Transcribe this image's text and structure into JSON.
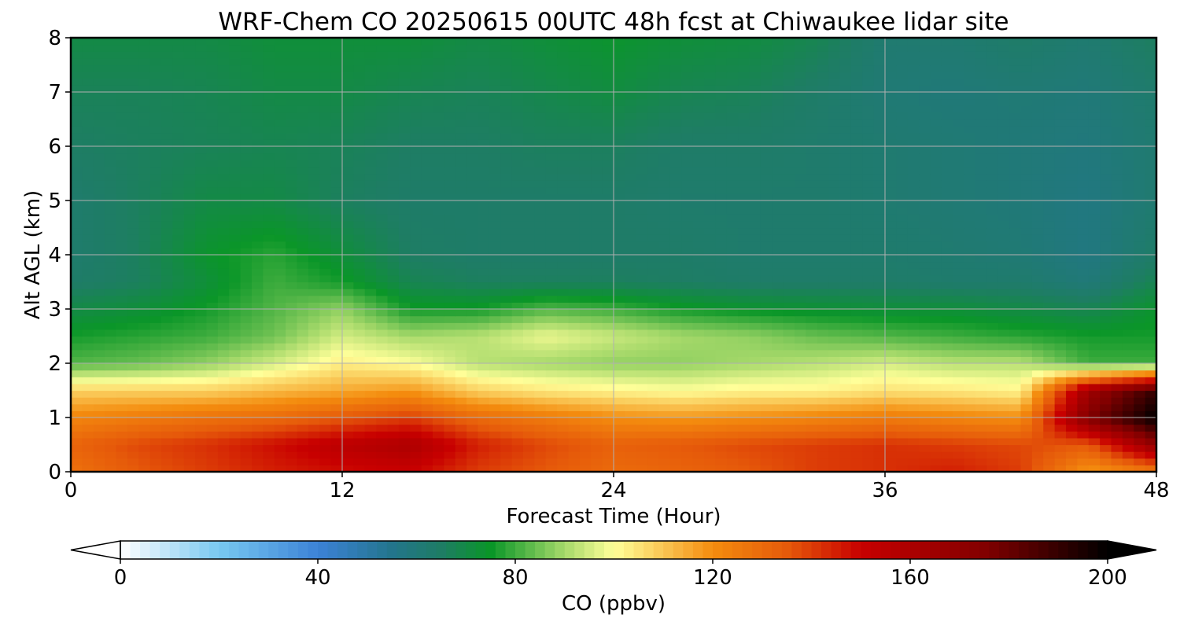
{
  "chart_data": {
    "type": "heatmap",
    "title": "WRF-Chem CO  20250615 00UTC 48h fcst at Chiwaukee lidar site",
    "xlabel": "Forecast Time (Hour)",
    "ylabel": "Alt AGL (km)",
    "xlim": [
      0,
      48
    ],
    "ylim": [
      0,
      8
    ],
    "xticks": [
      "0",
      "12",
      "24",
      "36",
      "48"
    ],
    "yticks": [
      "0",
      "1",
      "2",
      "3",
      "4",
      "5",
      "6",
      "7",
      "8"
    ],
    "grid": true,
    "x": [
      0,
      3,
      6,
      9,
      12,
      15,
      18,
      21,
      24,
      27,
      30,
      33,
      36,
      39,
      42,
      45,
      48
    ],
    "y": [
      0,
      0.5,
      1,
      1.5,
      2,
      2.5,
      3,
      3.5,
      4,
      5,
      6,
      7,
      8
    ],
    "z": [
      [
        128,
        135,
        140,
        145,
        148,
        150,
        140,
        135,
        130,
        132,
        135,
        140,
        142,
        145,
        140,
        118,
        125
      ],
      [
        132,
        138,
        142,
        148,
        155,
        160,
        145,
        138,
        133,
        135,
        138,
        140,
        142,
        140,
        138,
        135,
        170
      ],
      [
        122,
        125,
        128,
        130,
        135,
        140,
        130,
        125,
        120,
        118,
        120,
        122,
        125,
        122,
        120,
        175,
        200
      ],
      [
        108,
        108,
        108,
        112,
        115,
        118,
        108,
        104,
        102,
        100,
        102,
        102,
        105,
        104,
        102,
        165,
        190
      ],
      [
        82,
        84,
        88,
        95,
        103,
        100,
        92,
        90,
        88,
        88,
        90,
        92,
        95,
        92,
        92,
        80,
        80
      ],
      [
        76,
        78,
        80,
        85,
        95,
        90,
        92,
        98,
        94,
        90,
        88,
        84,
        82,
        80,
        78,
        76,
        76
      ],
      [
        70,
        72,
        76,
        82,
        88,
        76,
        76,
        82,
        80,
        76,
        74,
        73,
        72,
        72,
        70,
        68,
        74
      ],
      [
        64,
        66,
        72,
        80,
        76,
        68,
        66,
        66,
        66,
        65,
        64,
        64,
        64,
        63,
        63,
        60,
        68
      ],
      [
        63,
        66,
        74,
        78,
        72,
        65,
        64,
        64,
        64,
        64,
        63,
        63,
        63,
        62,
        61,
        58,
        64
      ],
      [
        63,
        66,
        70,
        70,
        66,
        64,
        64,
        64,
        64,
        63,
        63,
        63,
        62,
        61,
        60,
        58,
        62
      ],
      [
        65,
        66,
        67,
        68,
        67,
        65,
        65,
        66,
        66,
        64,
        64,
        63,
        62,
        61,
        60,
        59,
        62
      ],
      [
        67,
        67,
        68,
        70,
        70,
        68,
        67,
        69,
        71,
        68,
        67,
        64,
        61,
        60,
        61,
        60,
        63
      ],
      [
        70,
        70,
        70,
        72,
        72,
        72,
        70,
        72,
        74,
        72,
        71,
        68,
        62,
        62,
        64,
        62,
        66
      ]
    ],
    "colorbar": {
      "label": "CO  (ppbv)",
      "min": 0,
      "max": 200,
      "ticks": [
        "0",
        "40",
        "80",
        "120",
        "160",
        "200"
      ],
      "extend": "both",
      "colormap": [
        [
          0,
          "#ffffff"
        ],
        [
          20,
          "#78c8f0"
        ],
        [
          40,
          "#3c82d7"
        ],
        [
          55,
          "#23758c"
        ],
        [
          65,
          "#1e7d64"
        ],
        [
          75,
          "#0a9628"
        ],
        [
          90,
          "#a6d96a"
        ],
        [
          100,
          "#ffff99"
        ],
        [
          120,
          "#f48c0e"
        ],
        [
          135,
          "#e65a0a"
        ],
        [
          150,
          "#c80000"
        ],
        [
          175,
          "#820000"
        ],
        [
          200,
          "#000000"
        ]
      ]
    }
  }
}
